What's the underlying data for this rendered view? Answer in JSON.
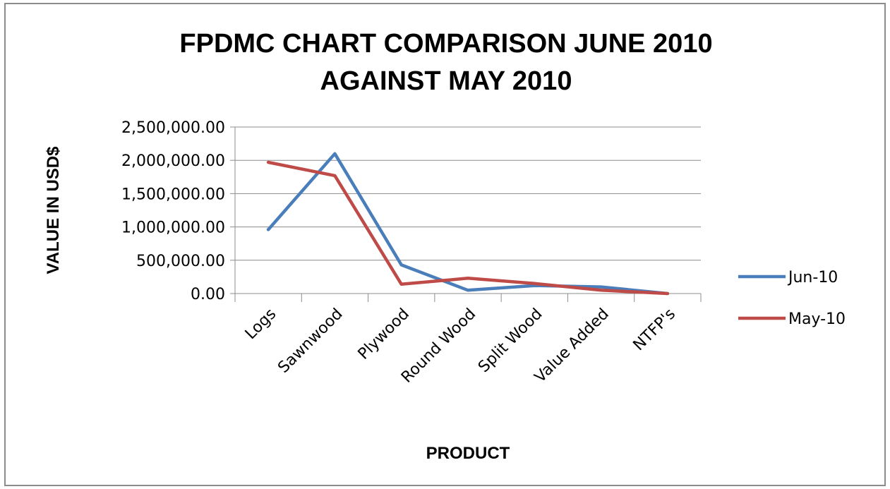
{
  "chart_data": {
    "type": "line",
    "title_lines": [
      "FPDMC CHART COMPARISON JUNE 2010",
      "AGAINST MAY 2010"
    ],
    "xlabel": "PRODUCT",
    "ylabel": "VALUE IN USD$",
    "categories": [
      "Logs",
      "Sawnwood",
      "Plywood",
      "Round Wood",
      "Split Wood",
      "Value Added",
      "NTFP's"
    ],
    "series": [
      {
        "name": "Jun-10",
        "color": "#4a7ebb",
        "values": [
          960000,
          2100000,
          430000,
          50000,
          120000,
          100000,
          0
        ]
      },
      {
        "name": "May-10",
        "color": "#be4b48",
        "values": [
          1970000,
          1770000,
          140000,
          230000,
          150000,
          50000,
          0
        ]
      }
    ],
    "ylim": [
      0,
      2500000
    ],
    "yticks": [
      "0.00",
      "500,000.00",
      "1,000,000.00",
      "1,500,000.00",
      "2,000,000.00",
      "2,500,000.00"
    ],
    "grid": true,
    "legend": "right"
  }
}
